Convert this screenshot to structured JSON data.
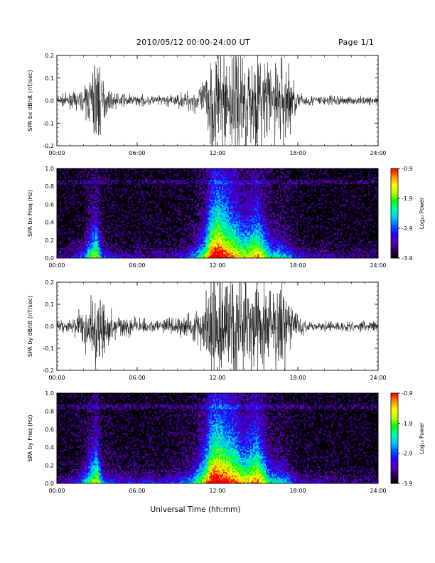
{
  "header": {
    "title": "2010/05/12  00:00-24:00 UT",
    "page": "Page 1/1"
  },
  "xlabel": "Universal Time (hh:mm)",
  "colorbar": {
    "label": "Log₁₀ Power",
    "ticks": [
      "-0.9",
      "-1.9",
      "-2.9",
      "-3.9"
    ],
    "range": [
      -3.9,
      -0.9
    ],
    "colors": [
      "#000000",
      "#2a0060",
      "#5a00b4",
      "#2400ff",
      "#0060ff",
      "#00c8ff",
      "#00ffb0",
      "#00ff00",
      "#b8ff00",
      "#ffff00",
      "#ff9000",
      "#ff0000"
    ]
  },
  "chart_data": [
    {
      "type": "line",
      "ylabel": "SPA bx dB/dt (nT/sec)",
      "xticks": [
        "00:00",
        "06:00",
        "12:00",
        "18:00",
        "24:00"
      ],
      "xlim": [
        0,
        24
      ],
      "yticks": [
        "-0.2",
        "-0.1",
        "0.0",
        "0.1",
        "0.2"
      ],
      "ylim": [
        -0.2,
        0.2
      ],
      "envelope": {
        "hours": [
          0,
          1,
          2,
          2.5,
          3,
          3.4,
          4,
          5,
          6,
          7,
          8,
          9,
          10,
          11,
          11.5,
          12,
          13,
          14,
          15,
          16,
          17,
          18,
          19,
          20,
          21,
          22,
          23,
          24
        ],
        "amplitude": [
          0.02,
          0.025,
          0.04,
          0.1,
          0.22,
          0.08,
          0.03,
          0.025,
          0.02,
          0.02,
          0.02,
          0.025,
          0.04,
          0.07,
          0.22,
          0.22,
          0.22,
          0.2,
          0.2,
          0.15,
          0.2,
          0.03,
          0.02,
          0.02,
          0.02,
          0.015,
          0.015,
          0.015
        ]
      }
    },
    {
      "type": "heatmap",
      "ylabel": "SPA bx Freq (Hz)",
      "xticks": [
        "00:00",
        "06:00",
        "12:00",
        "18:00",
        "24:00"
      ],
      "xlim": [
        0,
        24
      ],
      "yticks": [
        "0.0",
        "0.2",
        "0.4",
        "0.6",
        "0.8",
        "1.0"
      ],
      "ylim": [
        0,
        1.0
      ],
      "activity": {
        "hours": [
          0,
          1,
          2,
          2.5,
          3,
          3.4,
          4,
          5,
          6,
          7,
          8,
          9,
          10,
          11,
          11.5,
          12,
          13,
          14,
          15,
          16,
          17,
          18,
          19,
          20,
          21,
          22,
          23,
          24
        ],
        "intensity": [
          0.15,
          0.2,
          0.35,
          0.6,
          0.7,
          0.35,
          0.25,
          0.2,
          0.2,
          0.2,
          0.2,
          0.25,
          0.35,
          0.6,
          0.9,
          1.0,
          0.85,
          0.7,
          0.8,
          0.5,
          0.45,
          0.25,
          0.2,
          0.2,
          0.18,
          0.15,
          0.15,
          0.15
        ]
      }
    },
    {
      "type": "line",
      "ylabel": "SPA by dB/dt (nT/sec)",
      "xticks": [
        "00:00",
        "06:00",
        "12:00",
        "18:00",
        "24:00"
      ],
      "xlim": [
        0,
        24
      ],
      "yticks": [
        "-0.2",
        "-0.1",
        "0.0",
        "0.1",
        "0.2"
      ],
      "ylim": [
        -0.2,
        0.2
      ],
      "envelope": {
        "hours": [
          0,
          1,
          2,
          2.5,
          3,
          3.4,
          4,
          5,
          6,
          7,
          8,
          9,
          10,
          11,
          11.5,
          12,
          13,
          14,
          15,
          16,
          17,
          18,
          19,
          20,
          21,
          22,
          23,
          24
        ],
        "amplitude": [
          0.02,
          0.03,
          0.07,
          0.15,
          0.22,
          0.12,
          0.05,
          0.04,
          0.03,
          0.03,
          0.03,
          0.03,
          0.05,
          0.1,
          0.22,
          0.22,
          0.22,
          0.2,
          0.2,
          0.15,
          0.18,
          0.04,
          0.02,
          0.02,
          0.02,
          0.02,
          0.02,
          0.02
        ]
      }
    },
    {
      "type": "heatmap",
      "ylabel": "SPA by Freq (Hz)",
      "xticks": [
        "00:00",
        "06:00",
        "12:00",
        "18:00",
        "24:00"
      ],
      "xlim": [
        0,
        24
      ],
      "yticks": [
        "0.0",
        "0.2",
        "0.4",
        "0.6",
        "0.8",
        "1.0"
      ],
      "ylim": [
        0,
        1.0
      ],
      "activity": {
        "hours": [
          0,
          1,
          2,
          2.5,
          3,
          3.4,
          4,
          5,
          6,
          7,
          8,
          9,
          10,
          11,
          11.5,
          12,
          13,
          14,
          15,
          16,
          17,
          18,
          19,
          20,
          21,
          22,
          23,
          24
        ],
        "intensity": [
          0.15,
          0.2,
          0.4,
          0.6,
          0.75,
          0.4,
          0.3,
          0.25,
          0.25,
          0.25,
          0.25,
          0.3,
          0.4,
          0.7,
          0.95,
          1.0,
          0.9,
          0.75,
          0.85,
          0.5,
          0.45,
          0.25,
          0.2,
          0.2,
          0.18,
          0.15,
          0.15,
          0.15
        ]
      }
    }
  ]
}
